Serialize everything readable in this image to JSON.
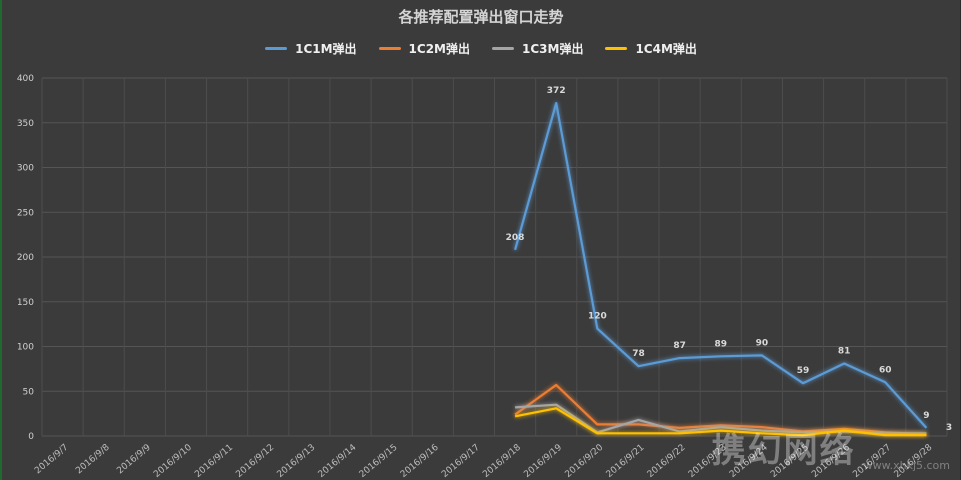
{
  "chart_data": {
    "type": "line",
    "title": "各推荐配置弹出窗口走势",
    "xlabel": "",
    "ylabel": "",
    "ylim": [
      0,
      400
    ],
    "y_ticks": [
      0,
      50,
      100,
      150,
      200,
      250,
      300,
      350,
      400
    ],
    "grid": true,
    "legend_position": "top",
    "categories": [
      "2016/9/7",
      "2016/9/8",
      "2016/9/9",
      "2016/9/10",
      "2016/9/11",
      "2016/9/12",
      "2016/9/13",
      "2016/9/14",
      "2016/9/15",
      "2016/9/16",
      "2016/9/17",
      "2016/9/18",
      "2016/9/19",
      "2016/9/20",
      "2016/9/21",
      "2016/9/22",
      "2016/9/23",
      "2016/9/24",
      "2016/9/25",
      "2016/9/26",
      "2016/9/27",
      "2016/9/28"
    ],
    "series": [
      {
        "name": "1C1M弹出",
        "color": "#5b9bd5",
        "values": [
          null,
          null,
          null,
          null,
          null,
          null,
          null,
          null,
          null,
          null,
          null,
          208,
          372,
          120,
          78,
          87,
          89,
          90,
          59,
          81,
          60,
          9
        ],
        "labels": [
          null,
          null,
          null,
          null,
          null,
          null,
          null,
          null,
          null,
          null,
          null,
          208,
          372,
          120,
          78,
          87,
          89,
          90,
          59,
          81,
          60,
          9
        ]
      },
      {
        "name": "1C2M弹出",
        "color": "#ed7d31",
        "values": [
          null,
          null,
          null,
          null,
          null,
          null,
          null,
          null,
          null,
          null,
          null,
          24,
          57,
          13,
          13,
          9,
          12,
          10,
          5,
          8,
          4,
          2
        ]
      },
      {
        "name": "1C3M弹出",
        "color": "#a5a5a5",
        "values": [
          null,
          null,
          null,
          null,
          null,
          null,
          null,
          null,
          null,
          null,
          null,
          32,
          35,
          4,
          18,
          5,
          10,
          6,
          4,
          5,
          3,
          3
        ]
      },
      {
        "name": "1C4M弹出",
        "color": "#ffc000",
        "values": [
          null,
          null,
          null,
          null,
          null,
          null,
          null,
          null,
          null,
          null,
          null,
          22,
          31,
          3,
          3,
          3,
          6,
          3,
          1,
          6,
          1,
          1
        ]
      }
    ],
    "extra_label": "3"
  },
  "watermark": {
    "brand": "携幻网络",
    "url": "www.xhkj5.com"
  }
}
